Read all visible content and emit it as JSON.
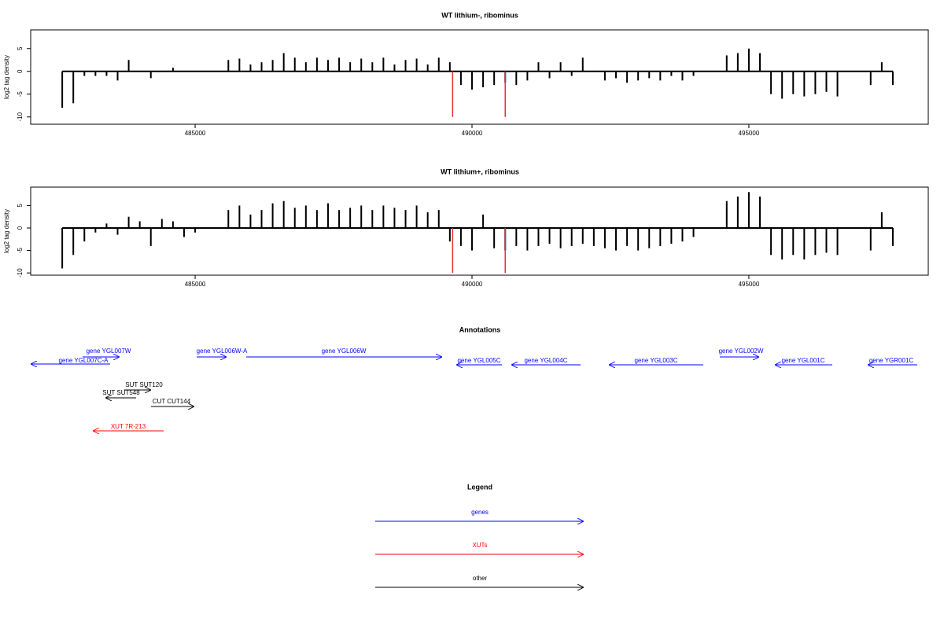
{
  "chart_data": [
    {
      "type": "bar",
      "title": "WT lithium-, ribominus",
      "ylabel": "log2 tag density",
      "color": "#000000",
      "x": [
        482600,
        482800,
        483000,
        483200,
        483400,
        483600,
        483800,
        484000,
        484200,
        484400,
        484600,
        484800,
        485000,
        485200,
        485400,
        485600,
        485800,
        486000,
        486200,
        486400,
        486600,
        486800,
        487000,
        487200,
        487400,
        487600,
        487800,
        488000,
        488200,
        488400,
        488600,
        488800,
        489000,
        489200,
        489400,
        489600,
        489800,
        490000,
        490200,
        490400,
        490600,
        490800,
        491000,
        491200,
        491400,
        491600,
        491800,
        492000,
        492200,
        492400,
        492600,
        492800,
        493000,
        493200,
        493400,
        493600,
        493800,
        494000,
        494200,
        494400,
        494600,
        494800,
        495000,
        495200,
        495400,
        495600,
        495800,
        496000,
        496200,
        496400,
        496600,
        496800,
        497000,
        497200,
        497400,
        497600
      ],
      "values": [
        -8,
        -7,
        -1,
        -1,
        -1,
        -2,
        2.5,
        0,
        -1.5,
        0,
        0.8,
        0,
        0,
        0,
        0,
        2.5,
        2.8,
        1.5,
        2,
        2.5,
        4,
        3,
        2,
        3,
        2.5,
        3,
        2,
        2.8,
        2,
        3,
        1.5,
        2.5,
        2.8,
        1.5,
        3,
        2,
        -3,
        -4,
        -3.5,
        -3,
        -2.5,
        -3,
        -2,
        2,
        -1.5,
        2,
        -1,
        3,
        0,
        -2,
        -1.5,
        -2.5,
        -2,
        -1.5,
        -2,
        -1,
        -2,
        -1,
        0,
        0,
        3.5,
        4,
        5,
        4,
        -5,
        -6,
        -5,
        -5.5,
        -5,
        -4.5,
        -5.5,
        0,
        0,
        -3,
        2,
        -3
      ],
      "highlights": {
        "x": [
          489650,
          490600
        ],
        "values": [
          -10,
          -10
        ],
        "color": "#e83030"
      },
      "xlim": [
        482030,
        498240
      ],
      "xticks": [
        485000,
        490000,
        495000
      ],
      "ylim": [
        -11.6,
        9.1
      ],
      "yticks": [
        -10,
        -5,
        0,
        5
      ]
    },
    {
      "type": "bar",
      "title": "WT lithium+, ribominus",
      "ylabel": "log2 tag density",
      "color": "#000000",
      "x": [
        482600,
        482800,
        483000,
        483200,
        483400,
        483600,
        483800,
        484000,
        484200,
        484400,
        484600,
        484800,
        485000,
        485200,
        485400,
        485600,
        485800,
        486000,
        486200,
        486400,
        486600,
        486800,
        487000,
        487200,
        487400,
        487600,
        487800,
        488000,
        488200,
        488400,
        488600,
        488800,
        489000,
        489200,
        489400,
        489600,
        489800,
        490000,
        490200,
        490400,
        490600,
        490800,
        491000,
        491200,
        491400,
        491600,
        491800,
        492000,
        492200,
        492400,
        492600,
        492800,
        493000,
        493200,
        493400,
        493600,
        493800,
        494000,
        494200,
        494400,
        494600,
        494800,
        495000,
        495200,
        495400,
        495600,
        495800,
        496000,
        496200,
        496400,
        496600,
        496800,
        497000,
        497200,
        497400,
        497600
      ],
      "values": [
        -9,
        -6,
        -3,
        -1,
        1,
        -1.5,
        2.5,
        1.5,
        -4,
        2,
        1.5,
        -2,
        -1,
        0,
        0,
        4,
        5,
        3,
        4,
        5.5,
        6,
        4.5,
        5,
        4,
        5.5,
        4,
        4.5,
        5,
        4,
        5,
        4.5,
        4,
        5,
        3.5,
        4,
        -3,
        -4,
        -5,
        3,
        -4.5,
        -5,
        -4,
        -5,
        -4,
        -3.5,
        -4.5,
        -4,
        -3.5,
        -4,
        -4.5,
        -5,
        -4,
        -5,
        -4.5,
        -4,
        -3.5,
        -3,
        -2,
        0,
        0,
        6,
        7,
        8,
        7,
        -6,
        -7,
        -6,
        -7,
        -6,
        -5.5,
        -6,
        0,
        0,
        -5,
        3.5,
        -4
      ],
      "highlights": {
        "x": [
          489650,
          490600
        ],
        "values": [
          -10,
          -10
        ],
        "color": "#e83030"
      },
      "xlim": [
        482030,
        498240
      ],
      "xticks": [
        485000,
        490000,
        495000
      ],
      "ylim": [
        -10.5,
        9.1
      ],
      "yticks": [
        -10,
        -5,
        0,
        5
      ]
    }
  ],
  "annotations": {
    "title": "Annotations",
    "features": [
      "gene YGL007W",
      "gene YGL007C-A",
      "gene YGL006W-A",
      "gene YGL006W",
      "gene YGL005C",
      "gene YGL004C",
      "gene YGL003C",
      "gene YGL002W",
      "gene YGL001C",
      "gene YGR001C",
      "SUT SUT120",
      "SUT SUT548",
      "CUT CUT144",
      "XUT 7R-213"
    ]
  },
  "legend": {
    "title": "Legend",
    "items": [
      {
        "name": "genes",
        "color": "#0000ff"
      },
      {
        "name": "XUTs",
        "color": "#ff0000"
      },
      {
        "name": "other",
        "color": "#000000"
      }
    ]
  }
}
